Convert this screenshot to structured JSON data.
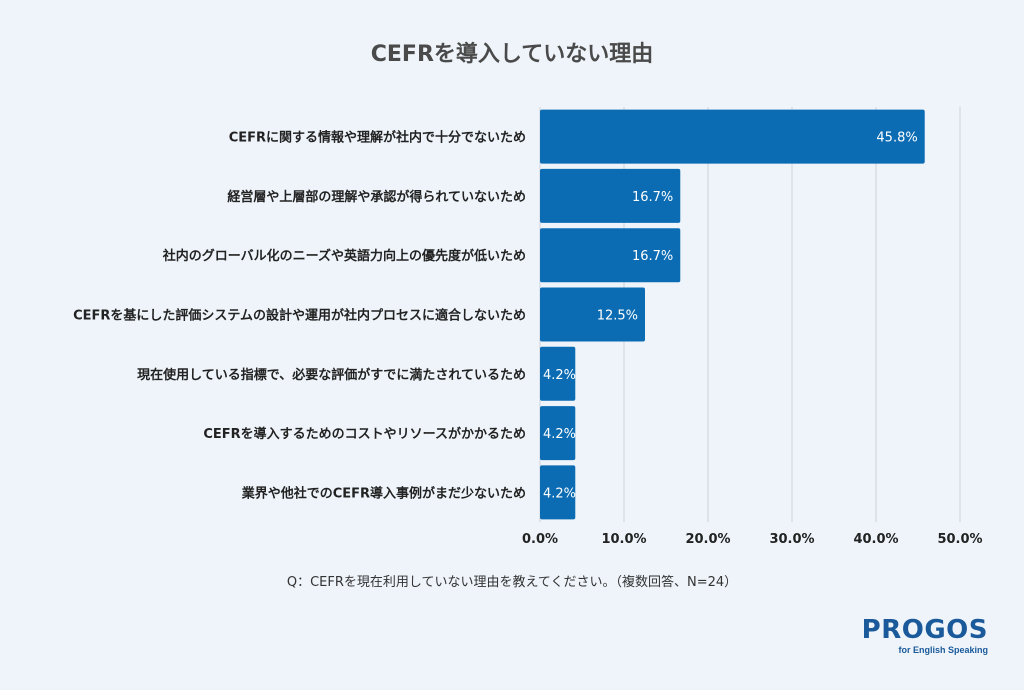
{
  "chart_data": {
    "type": "bar",
    "orientation": "horizontal",
    "title": "CEFRを導入していない理由",
    "categories": [
      "CEFRに関する情報や理解が社内で十分でないため",
      "経営層や上層部の理解や承認が得られていないため",
      "社内のグローバル化のニーズや英語力向上の優先度が低いため",
      "CEFRを基にした評価システムの設計や運用が社内プロセスに適合しないため",
      "現在使用している指標で、必要な評価がすでに満たされているため",
      "CEFRを導入するためのコストやリソースがかかるため",
      "業界や他社でのCEFR導入事例がまだ少ないため"
    ],
    "values": [
      45.8,
      16.7,
      16.7,
      12.5,
      4.2,
      4.2,
      4.2
    ],
    "value_labels": [
      "45.8%",
      "16.7%",
      "16.7%",
      "12.5%",
      "4.2%",
      "4.2%",
      "4.2%"
    ],
    "xlim": [
      0,
      50
    ],
    "xticks": [
      0,
      10,
      20,
      30,
      40,
      50
    ],
    "xtick_labels": [
      "0.0%",
      "10.0%",
      "20.0%",
      "30.0%",
      "40.0%",
      "50.0%"
    ],
    "grid": true,
    "bar_color": "#0b6bb3"
  },
  "note": "Q：CEFRを現在利用していない理由を教えてください。（複数回答、N=24）",
  "logo": {
    "name": "PROGOS",
    "tagline": "for English Speaking"
  }
}
